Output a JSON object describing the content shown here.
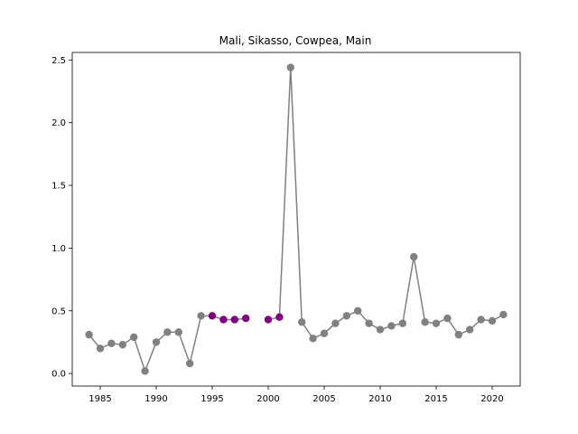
{
  "chart_data": {
    "type": "line",
    "title": "Mali, Sikasso, Cowpea, Main",
    "xlabel": "",
    "ylabel": "",
    "xlim": [
      1982.5,
      2022.5
    ],
    "ylim": [
      -0.1,
      2.56
    ],
    "xticks": [
      1985,
      1990,
      1995,
      2000,
      2005,
      2010,
      2015,
      2020
    ],
    "xtick_labels": [
      "1985",
      "1990",
      "1995",
      "2000",
      "2005",
      "2010",
      "2015",
      "2020"
    ],
    "yticks": [
      0.0,
      0.5,
      1.0,
      1.5,
      2.0,
      2.5
    ],
    "ytick_labels": [
      "0.0",
      "0.5",
      "1.0",
      "1.5",
      "2.0",
      "2.5"
    ],
    "grid": false,
    "line_color": "#808080",
    "highlight_color": "#800080",
    "series": [
      {
        "x": [
          1984,
          1985,
          1986,
          1987,
          1988,
          1989,
          1990,
          1991,
          1992,
          1993,
          1994,
          1995,
          1996,
          1997,
          1998,
          2000,
          2001,
          2002,
          2003,
          2004,
          2005,
          2006,
          2007,
          2008,
          2009,
          2010,
          2011,
          2012,
          2013,
          2014,
          2015,
          2016,
          2017,
          2018,
          2019,
          2020,
          2021
        ],
        "y": [
          0.31,
          0.2,
          0.24,
          0.23,
          0.29,
          0.02,
          0.25,
          0.33,
          0.33,
          0.08,
          0.46,
          0.46,
          0.43,
          0.43,
          0.44,
          0.43,
          0.45,
          2.44,
          0.41,
          0.28,
          0.32,
          0.4,
          0.46,
          0.5,
          0.4,
          0.35,
          0.38,
          0.4,
          0.93,
          0.41,
          0.4,
          0.44,
          0.31,
          0.35,
          0.43,
          0.42,
          0.47
        ],
        "highlighted": [
          false,
          false,
          false,
          false,
          false,
          false,
          false,
          false,
          false,
          false,
          false,
          true,
          true,
          true,
          true,
          true,
          true,
          false,
          false,
          false,
          false,
          false,
          false,
          false,
          false,
          false,
          false,
          false,
          false,
          false,
          false,
          false,
          false,
          false,
          false,
          false,
          false
        ]
      }
    ]
  }
}
